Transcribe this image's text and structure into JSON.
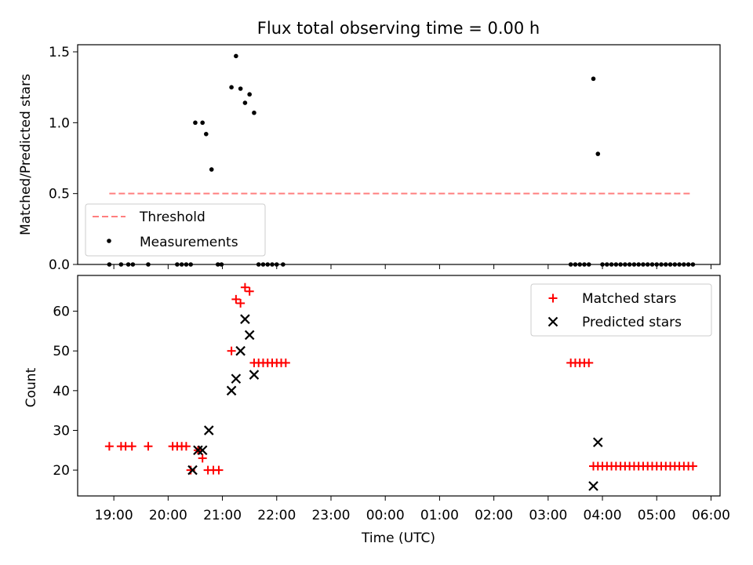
{
  "chart_data": [
    {
      "type": "scatter",
      "title": "Flux total observing time = 0.00 h",
      "ylabel": "Matched/Predicted stars",
      "xlabel": "",
      "ylim": [
        0,
        1.55
      ],
      "yticks": [
        {
          "value": 0.0,
          "label": "0.0"
        },
        {
          "value": 0.5,
          "label": "0.5"
        },
        {
          "value": 1.0,
          "label": "1.0"
        },
        {
          "value": 1.5,
          "label": "1.5"
        }
      ],
      "legend": {
        "position": "lower-left",
        "entries": [
          {
            "label": "Threshold",
            "style": "dashed-line",
            "color": "#ff7f7f"
          },
          {
            "label": "Measurements",
            "style": "dot",
            "color": "#000000"
          }
        ]
      },
      "threshold": {
        "value": 0.5,
        "x_start": "18:55",
        "x_end": "05:40",
        "color": "#ff7f7f"
      },
      "series": [
        {
          "name": "Measurements",
          "color": "#000000",
          "points": [
            {
              "x": "18:55",
              "y": 0
            },
            {
              "x": "19:08",
              "y": 0
            },
            {
              "x": "19:16",
              "y": 0
            },
            {
              "x": "19:21",
              "y": 0
            },
            {
              "x": "19:38",
              "y": 0
            },
            {
              "x": "20:10",
              "y": 0
            },
            {
              "x": "20:15",
              "y": 0
            },
            {
              "x": "20:20",
              "y": 0
            },
            {
              "x": "20:25",
              "y": 0
            },
            {
              "x": "20:30",
              "y": 1.0
            },
            {
              "x": "20:38",
              "y": 1.0
            },
            {
              "x": "20:42",
              "y": 0.92
            },
            {
              "x": "20:48",
              "y": 0.67
            },
            {
              "x": "20:55",
              "y": 0
            },
            {
              "x": "20:59",
              "y": 0
            },
            {
              "x": "21:10",
              "y": 1.25
            },
            {
              "x": "21:15",
              "y": 1.47
            },
            {
              "x": "21:20",
              "y": 1.24
            },
            {
              "x": "21:25",
              "y": 1.14
            },
            {
              "x": "21:30",
              "y": 1.2
            },
            {
              "x": "21:35",
              "y": 1.07
            },
            {
              "x": "21:40",
              "y": 0
            },
            {
              "x": "21:45",
              "y": 0
            },
            {
              "x": "21:50",
              "y": 0
            },
            {
              "x": "21:55",
              "y": 0
            },
            {
              "x": "22:00",
              "y": 0
            },
            {
              "x": "22:07",
              "y": 0
            },
            {
              "x": "03:25",
              "y": 0
            },
            {
              "x": "03:30",
              "y": 0
            },
            {
              "x": "03:35",
              "y": 0
            },
            {
              "x": "03:40",
              "y": 0
            },
            {
              "x": "03:45",
              "y": 0
            },
            {
              "x": "03:50",
              "y": 1.31
            },
            {
              "x": "03:55",
              "y": 0.78
            },
            {
              "x": "04:00",
              "y": 0
            },
            {
              "x": "04:05",
              "y": 0
            },
            {
              "x": "04:10",
              "y": 0
            },
            {
              "x": "04:15",
              "y": 0
            },
            {
              "x": "04:20",
              "y": 0
            },
            {
              "x": "04:25",
              "y": 0
            },
            {
              "x": "04:30",
              "y": 0
            },
            {
              "x": "04:35",
              "y": 0
            },
            {
              "x": "04:40",
              "y": 0
            },
            {
              "x": "04:45",
              "y": 0
            },
            {
              "x": "04:50",
              "y": 0
            },
            {
              "x": "04:55",
              "y": 0
            },
            {
              "x": "05:00",
              "y": 0
            },
            {
              "x": "05:05",
              "y": 0
            },
            {
              "x": "05:10",
              "y": 0
            },
            {
              "x": "05:15",
              "y": 0
            },
            {
              "x": "05:20",
              "y": 0
            },
            {
              "x": "05:25",
              "y": 0
            },
            {
              "x": "05:30",
              "y": 0
            },
            {
              "x": "05:35",
              "y": 0
            },
            {
              "x": "05:40",
              "y": 0
            }
          ]
        }
      ]
    },
    {
      "type": "scatter",
      "title": "",
      "ylabel": "Count",
      "xlabel": "Time (UTC)",
      "ylim": [
        13.5,
        69
      ],
      "yticks": [
        {
          "value": 20,
          "label": "20"
        },
        {
          "value": 30,
          "label": "30"
        },
        {
          "value": 40,
          "label": "40"
        },
        {
          "value": 50,
          "label": "50"
        },
        {
          "value": 60,
          "label": "60"
        }
      ],
      "xaxis": {
        "range": [
          "18:20",
          "06:10"
        ],
        "ticks": [
          "19:00",
          "20:00",
          "21:00",
          "22:00",
          "23:00",
          "00:00",
          "01:00",
          "02:00",
          "03:00",
          "04:00",
          "05:00",
          "06:00"
        ]
      },
      "legend": {
        "position": "upper-right",
        "entries": [
          {
            "label": "Matched stars",
            "style": "plus",
            "color": "#ff0000"
          },
          {
            "label": "Predicted stars",
            "style": "x",
            "color": "#000000"
          }
        ]
      },
      "series": [
        {
          "name": "Matched stars",
          "marker": "plus",
          "color": "#ff0000",
          "points": [
            {
              "x": "18:55",
              "y": 26
            },
            {
              "x": "19:08",
              "y": 26
            },
            {
              "x": "19:13",
              "y": 26
            },
            {
              "x": "19:20",
              "y": 26
            },
            {
              "x": "19:38",
              "y": 26
            },
            {
              "x": "20:05",
              "y": 26
            },
            {
              "x": "20:10",
              "y": 26
            },
            {
              "x": "20:15",
              "y": 26
            },
            {
              "x": "20:20",
              "y": 26
            },
            {
              "x": "20:25",
              "y": 20
            },
            {
              "x": "20:33",
              "y": 25
            },
            {
              "x": "20:38",
              "y": 23
            },
            {
              "x": "20:44",
              "y": 20
            },
            {
              "x": "20:50",
              "y": 20
            },
            {
              "x": "20:56",
              "y": 20
            },
            {
              "x": "21:10",
              "y": 50
            },
            {
              "x": "21:15",
              "y": 63
            },
            {
              "x": "21:20",
              "y": 62
            },
            {
              "x": "21:25",
              "y": 66
            },
            {
              "x": "21:30",
              "y": 65
            },
            {
              "x": "21:35",
              "y": 47
            },
            {
              "x": "21:40",
              "y": 47
            },
            {
              "x": "21:45",
              "y": 47
            },
            {
              "x": "21:50",
              "y": 47
            },
            {
              "x": "21:55",
              "y": 47
            },
            {
              "x": "22:00",
              "y": 47
            },
            {
              "x": "22:05",
              "y": 47
            },
            {
              "x": "22:10",
              "y": 47
            },
            {
              "x": "03:25",
              "y": 47
            },
            {
              "x": "03:30",
              "y": 47
            },
            {
              "x": "03:35",
              "y": 47
            },
            {
              "x": "03:40",
              "y": 47
            },
            {
              "x": "03:45",
              "y": 47
            },
            {
              "x": "03:50",
              "y": 21
            },
            {
              "x": "03:55",
              "y": 21
            },
            {
              "x": "04:00",
              "y": 21
            },
            {
              "x": "04:05",
              "y": 21
            },
            {
              "x": "04:10",
              "y": 21
            },
            {
              "x": "04:15",
              "y": 21
            },
            {
              "x": "04:20",
              "y": 21
            },
            {
              "x": "04:25",
              "y": 21
            },
            {
              "x": "04:30",
              "y": 21
            },
            {
              "x": "04:35",
              "y": 21
            },
            {
              "x": "04:40",
              "y": 21
            },
            {
              "x": "04:45",
              "y": 21
            },
            {
              "x": "04:50",
              "y": 21
            },
            {
              "x": "04:55",
              "y": 21
            },
            {
              "x": "05:00",
              "y": 21
            },
            {
              "x": "05:05",
              "y": 21
            },
            {
              "x": "05:10",
              "y": 21
            },
            {
              "x": "05:15",
              "y": 21
            },
            {
              "x": "05:20",
              "y": 21
            },
            {
              "x": "05:25",
              "y": 21
            },
            {
              "x": "05:30",
              "y": 21
            },
            {
              "x": "05:35",
              "y": 21
            },
            {
              "x": "05:40",
              "y": 21
            }
          ]
        },
        {
          "name": "Predicted stars",
          "marker": "x",
          "color": "#000000",
          "points": [
            {
              "x": "20:27",
              "y": 20
            },
            {
              "x": "20:33",
              "y": 25
            },
            {
              "x": "20:38",
              "y": 25
            },
            {
              "x": "20:45",
              "y": 30
            },
            {
              "x": "21:10",
              "y": 40
            },
            {
              "x": "21:15",
              "y": 43
            },
            {
              "x": "21:20",
              "y": 50
            },
            {
              "x": "21:25",
              "y": 58
            },
            {
              "x": "21:30",
              "y": 54
            },
            {
              "x": "21:35",
              "y": 44
            },
            {
              "x": "03:50",
              "y": 16
            },
            {
              "x": "03:55",
              "y": 27
            }
          ]
        }
      ]
    }
  ]
}
